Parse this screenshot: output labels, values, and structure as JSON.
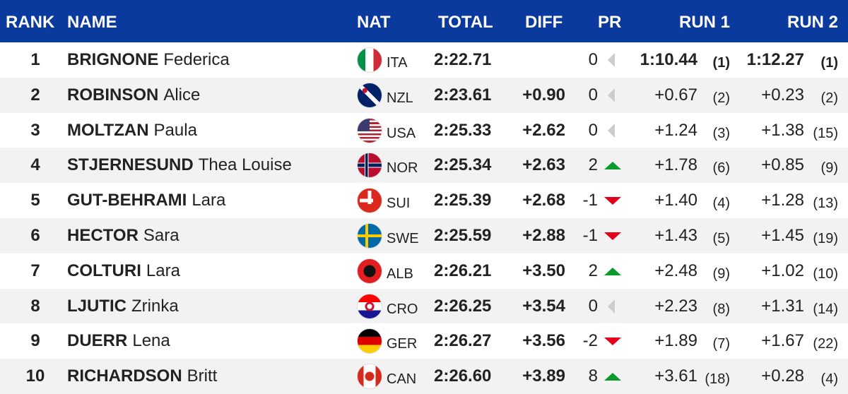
{
  "header": {
    "columns": [
      "RANK",
      "NAME",
      "NAT",
      "TOTAL",
      "DIFF",
      "PR",
      "RUN 1",
      "RUN 2"
    ]
  },
  "table": {
    "rows": [
      {
        "rank": "1",
        "surname": "BRIGNONE",
        "firstname": "Federica",
        "nat": "ITA",
        "total": "2:22.71",
        "pr": "0",
        "run1": "1:10.44",
        "run1_rank": "(1)",
        "run2": "1:12.27",
        "run2_rank": "(1)"
      },
      {
        "rank": "2",
        "surname": "ROBINSON",
        "firstname": "Alice",
        "nat": "NZL",
        "total": "2:23.61",
        "diff": "+0.90",
        "pr": "0",
        "run1": "+0.67",
        "run1_rank": "(2)",
        "run2": "+0.23",
        "run2_rank": "(2)"
      },
      {
        "rank": "3",
        "surname": "MOLTZAN",
        "firstname": "Paula",
        "nat": "USA",
        "total": "2:25.33",
        "diff": "+2.62",
        "pr": "0",
        "run1": "+1.24",
        "run1_rank": "(3)",
        "run2": "+1.38",
        "run2_rank": "(15)"
      },
      {
        "rank": "4",
        "surname": "STJERNESUND",
        "firstname": "Thea Louise",
        "nat": "NOR",
        "total": "2:25.34",
        "diff": "+2.63",
        "pr": "2",
        "run1": "+1.78",
        "run1_rank": "(6)",
        "run2": "+0.85",
        "run2_rank": "(9)"
      },
      {
        "rank": "5",
        "surname": "GUT-BEHRAMI",
        "firstname": "Lara",
        "nat": "SUI",
        "total": "2:25.39",
        "diff": "+2.68",
        "pr": "-1",
        "run1": "+1.40",
        "run1_rank": "(4)",
        "run2": "+1.28",
        "run2_rank": "(13)"
      },
      {
        "rank": "6",
        "surname": "HECTOR",
        "firstname": "Sara",
        "nat": "SWE",
        "total": "2:25.59",
        "diff": "+2.88",
        "pr": "-1",
        "run1": "+1.43",
        "run1_rank": "(5)",
        "run2": "+1.45",
        "run2_rank": "(19)"
      },
      {
        "rank": "7",
        "surname": "COLTURI",
        "firstname": "Lara",
        "nat": "ALB",
        "total": "2:26.21",
        "diff": "+3.50",
        "pr": "2",
        "run1": "+2.48",
        "run1_rank": "(9)",
        "run2": "+1.02",
        "run2_rank": "(10)"
      },
      {
        "rank": "8",
        "surname": "LJUTIC",
        "firstname": "Zrinka",
        "nat": "CRO",
        "total": "2:26.25",
        "diff": "+3.54",
        "pr": "0",
        "run1": "+2.23",
        "run1_rank": "(8)",
        "run2": "+1.31",
        "run2_rank": "(14)"
      },
      {
        "rank": "9",
        "surname": "DUERR",
        "firstname": "Lena",
        "nat": "GER",
        "total": "2:26.27",
        "diff": "+3.56",
        "pr": "-2",
        "run1": "+1.89",
        "run1_rank": "(7)",
        "run2": "+1.67",
        "run2_rank": "(22)"
      },
      {
        "rank": "10",
        "surname": "RICHARDSON",
        "firstname": "Britt",
        "nat": "CAN",
        "total": "2:26.60",
        "diff": "+3.89",
        "pr": "8",
        "run1": "+3.61",
        "run1_rank": "(18)",
        "run2": "+0.28",
        "run2_rank": "(4)"
      }
    ]
  }
}
